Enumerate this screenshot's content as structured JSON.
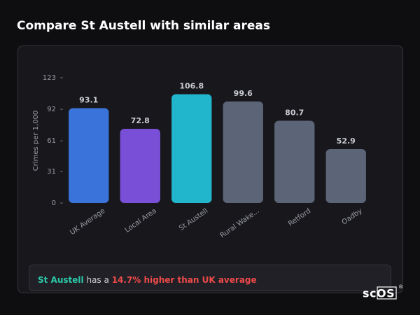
{
  "chart_data": {
    "type": "bar",
    "title": "Compare St Austell with similar areas",
    "y_label": "Crimes per 1,000",
    "categories": [
      "UK Average",
      "Local Area",
      "St Austell",
      "Rural Wake...",
      "Retford",
      "Oadby"
    ],
    "values": [
      93.1,
      72.8,
      106.8,
      99.6,
      80.7,
      52.9
    ],
    "colors": [
      "#3a74db",
      "#7a4fd8",
      "#22b6cc",
      "#5b6577",
      "#5b6577",
      "#5b6577"
    ],
    "ylim": [
      0,
      123
    ],
    "yticks": [
      0,
      31,
      61,
      92,
      123
    ],
    "grid": false
  },
  "summary": {
    "area": "St Austell",
    "middle": "has a",
    "difference": "14.7% higher than UK average"
  },
  "logo": {
    "text": "scOS",
    "mark": "®"
  }
}
